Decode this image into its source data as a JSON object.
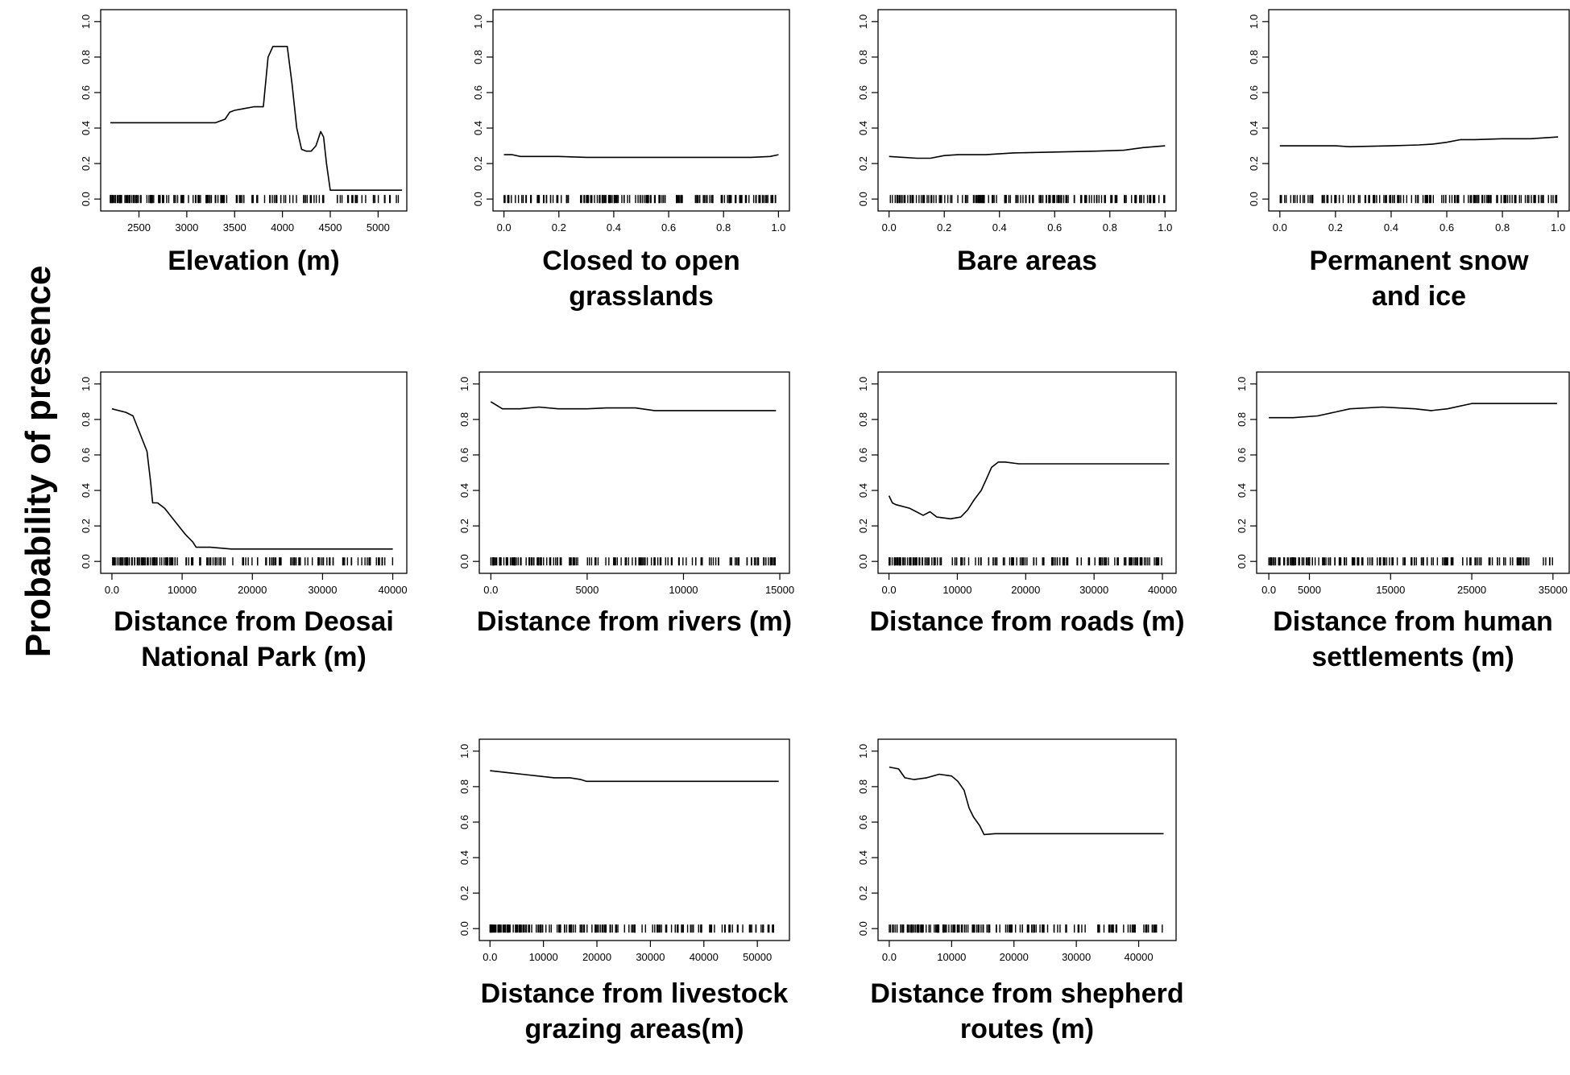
{
  "figure": {
    "y_label": "Probability of presence"
  },
  "chart_data": [
    {
      "type": "line",
      "xlabel_lines": [
        "Elevation (m)"
      ],
      "xlim": [
        2100,
        5300
      ],
      "ylim": [
        0,
        1.0
      ],
      "xticks": [
        2500,
        3000,
        3500,
        4000,
        4500,
        5000
      ],
      "yticks": [
        0.0,
        0.2,
        0.4,
        0.6,
        0.8,
        1.0
      ],
      "x": [
        2200,
        3300,
        3400,
        3450,
        3500,
        3600,
        3700,
        3800,
        3850,
        3900,
        4050,
        4100,
        4150,
        4200,
        4250,
        4300,
        4350,
        4400,
        4430,
        4460,
        4500,
        4550,
        5250
      ],
      "y": [
        0.43,
        0.43,
        0.45,
        0.49,
        0.5,
        0.51,
        0.52,
        0.52,
        0.8,
        0.86,
        0.86,
        0.65,
        0.4,
        0.28,
        0.27,
        0.27,
        0.3,
        0.38,
        0.35,
        0.2,
        0.05,
        0.05,
        0.05
      ],
      "rug_range": [
        2200,
        5250
      ]
    },
    {
      "type": "line",
      "xlabel_lines": [
        "Closed to open",
        "grasslands"
      ],
      "xlim": [
        -0.04,
        1.04
      ],
      "ylim": [
        0,
        1.0
      ],
      "xticks": [
        0.0,
        0.2,
        0.4,
        0.6,
        0.8,
        1.0
      ],
      "yticks": [
        0.0,
        0.2,
        0.4,
        0.6,
        0.8,
        1.0
      ],
      "x": [
        0.0,
        0.03,
        0.06,
        0.2,
        0.3,
        0.5,
        0.7,
        0.9,
        0.97,
        1.0
      ],
      "y": [
        0.25,
        0.25,
        0.24,
        0.24,
        0.235,
        0.235,
        0.235,
        0.235,
        0.24,
        0.25
      ],
      "rug_range": [
        0.0,
        1.0
      ]
    },
    {
      "type": "line",
      "xlabel_lines": [
        "Bare areas"
      ],
      "xlim": [
        -0.04,
        1.04
      ],
      "ylim": [
        0,
        1.0
      ],
      "xticks": [
        0.0,
        0.2,
        0.4,
        0.6,
        0.8,
        1.0
      ],
      "yticks": [
        0.0,
        0.2,
        0.4,
        0.6,
        0.8,
        1.0
      ],
      "x": [
        0.0,
        0.1,
        0.15,
        0.2,
        0.25,
        0.35,
        0.45,
        0.6,
        0.75,
        0.85,
        0.92,
        1.0
      ],
      "y": [
        0.24,
        0.23,
        0.23,
        0.245,
        0.25,
        0.25,
        0.26,
        0.265,
        0.27,
        0.275,
        0.29,
        0.3
      ],
      "rug_range": [
        0.0,
        1.0
      ]
    },
    {
      "type": "line",
      "xlabel_lines": [
        "Permanent snow",
        "and ice"
      ],
      "xlim": [
        -0.04,
        1.04
      ],
      "ylim": [
        0,
        1.0
      ],
      "xticks": [
        0.0,
        0.2,
        0.4,
        0.6,
        0.8,
        1.0
      ],
      "yticks": [
        0.0,
        0.2,
        0.4,
        0.6,
        0.8,
        1.0
      ],
      "x": [
        0.0,
        0.2,
        0.25,
        0.4,
        0.5,
        0.55,
        0.6,
        0.65,
        0.7,
        0.8,
        0.9,
        1.0
      ],
      "y": [
        0.3,
        0.3,
        0.295,
        0.3,
        0.305,
        0.31,
        0.32,
        0.335,
        0.335,
        0.34,
        0.34,
        0.35
      ],
      "rug_range": [
        0.0,
        1.0
      ]
    },
    {
      "type": "line",
      "xlabel_lines": [
        "Distance from Deosai",
        "National Park (m)"
      ],
      "xlim": [
        -1600,
        42000
      ],
      "ylim": [
        0,
        1.0
      ],
      "xticks": [
        0,
        10000,
        20000,
        30000,
        40000
      ],
      "yticks": [
        0.0,
        0.2,
        0.4,
        0.6,
        0.8,
        1.0
      ],
      "x": [
        0,
        2000,
        3000,
        4000,
        5000,
        5500,
        5800,
        6500,
        7500,
        8500,
        9500,
        10500,
        11500,
        12000,
        14000,
        17000,
        25000,
        40000
      ],
      "y": [
        0.86,
        0.84,
        0.82,
        0.72,
        0.62,
        0.45,
        0.33,
        0.33,
        0.3,
        0.25,
        0.2,
        0.15,
        0.11,
        0.08,
        0.08,
        0.07,
        0.07,
        0.07
      ],
      "rug_range": [
        0,
        40000
      ]
    },
    {
      "type": "line",
      "xlabel_lines": [
        "Distance from rivers (m)"
      ],
      "xlim": [
        -600,
        15500
      ],
      "ylim": [
        0,
        1.0
      ],
      "xticks": [
        0,
        5000,
        10000,
        15000
      ],
      "yticks": [
        0.0,
        0.2,
        0.4,
        0.6,
        0.8,
        1.0
      ],
      "x": [
        0,
        300,
        600,
        1500,
        2500,
        3500,
        5000,
        6000,
        7500,
        8500,
        10000,
        12000,
        14800
      ],
      "y": [
        0.9,
        0.88,
        0.86,
        0.86,
        0.87,
        0.86,
        0.86,
        0.865,
        0.865,
        0.85,
        0.85,
        0.85,
        0.85
      ],
      "rug_range": [
        0,
        14800
      ]
    },
    {
      "type": "line",
      "xlabel_lines": [
        "Distance from roads (m)"
      ],
      "xlim": [
        -1600,
        42000
      ],
      "ylim": [
        0,
        1.0
      ],
      "xticks": [
        0,
        10000,
        20000,
        30000,
        40000
      ],
      "yticks": [
        0.0,
        0.2,
        0.4,
        0.6,
        0.8,
        1.0
      ],
      "x": [
        0,
        500,
        1000,
        3000,
        5000,
        6000,
        7000,
        9000,
        10500,
        11500,
        12500,
        13500,
        14200,
        15000,
        16000,
        17000,
        19000,
        25000,
        41000
      ],
      "y": [
        0.37,
        0.33,
        0.32,
        0.3,
        0.26,
        0.28,
        0.25,
        0.24,
        0.25,
        0.29,
        0.35,
        0.4,
        0.46,
        0.53,
        0.56,
        0.56,
        0.55,
        0.55,
        0.55
      ],
      "rug_range": [
        0,
        40000
      ]
    },
    {
      "type": "line",
      "xlabel_lines": [
        "Distance from human",
        "settlements (m)"
      ],
      "xlim": [
        -1500,
        37000
      ],
      "ylim": [
        0,
        1.0
      ],
      "xticks": [
        0,
        5000,
        15000,
        25000,
        35000
      ],
      "yticks": [
        0.0,
        0.2,
        0.4,
        0.6,
        0.8,
        1.0
      ],
      "x": [
        0,
        3000,
        6000,
        8000,
        10000,
        14000,
        18000,
        20000,
        22000,
        25000,
        30000,
        35500
      ],
      "y": [
        0.81,
        0.81,
        0.82,
        0.84,
        0.86,
        0.87,
        0.86,
        0.85,
        0.86,
        0.89,
        0.89,
        0.89
      ],
      "rug_range": [
        0,
        35000
      ]
    },
    {
      "type": "line",
      "xlabel_lines": [
        "Distance from livestock",
        "grazing areas(m)"
      ],
      "xlim": [
        -2000,
        56000
      ],
      "ylim": [
        0,
        1.0
      ],
      "xticks": [
        0,
        10000,
        20000,
        30000,
        40000,
        50000
      ],
      "yticks": [
        0.0,
        0.2,
        0.4,
        0.6,
        0.8,
        1.0
      ],
      "x": [
        0,
        3000,
        6000,
        9000,
        12000,
        15000,
        17000,
        18000,
        25000,
        40000,
        54000
      ],
      "y": [
        0.89,
        0.88,
        0.87,
        0.86,
        0.85,
        0.85,
        0.84,
        0.83,
        0.83,
        0.83,
        0.83
      ],
      "rug_range": [
        0,
        54000
      ]
    },
    {
      "type": "line",
      "xlabel_lines": [
        "Distance from shepherd",
        "routes (m)"
      ],
      "xlim": [
        -1800,
        46000
      ],
      "ylim": [
        0,
        1.0
      ],
      "xticks": [
        0,
        10000,
        20000,
        30000,
        40000
      ],
      "yticks": [
        0.0,
        0.2,
        0.4,
        0.6,
        0.8,
        1.0
      ],
      "x": [
        0,
        1500,
        2500,
        4000,
        6000,
        8000,
        10000,
        11000,
        12000,
        12800,
        13500,
        14500,
        15200,
        17000,
        25000,
        44000
      ],
      "y": [
        0.91,
        0.9,
        0.85,
        0.84,
        0.85,
        0.87,
        0.86,
        0.83,
        0.78,
        0.68,
        0.63,
        0.58,
        0.53,
        0.535,
        0.535,
        0.535
      ],
      "rug_range": [
        0,
        44000
      ]
    }
  ]
}
